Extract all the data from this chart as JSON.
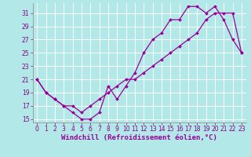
{
  "xlabel": "Windchill (Refroidissement éolien,°C)",
  "bg_color": "#b2e8e8",
  "line_color": "#990099",
  "xlim": [
    -0.5,
    23.5
  ],
  "ylim": [
    14.5,
    32.5
  ],
  "xticks": [
    0,
    1,
    2,
    3,
    4,
    5,
    6,
    7,
    8,
    9,
    10,
    11,
    12,
    13,
    14,
    15,
    16,
    17,
    18,
    19,
    20,
    21,
    22,
    23
  ],
  "yticks": [
    15,
    17,
    19,
    21,
    23,
    25,
    27,
    29,
    31
  ],
  "line1_x": [
    0,
    1,
    2,
    3,
    4,
    5,
    6,
    7,
    8,
    9,
    10,
    11,
    12,
    13,
    14,
    15,
    16,
    17,
    18,
    19,
    20,
    21,
    22,
    23
  ],
  "line1_y": [
    21,
    19,
    18,
    17,
    16,
    15,
    15,
    16,
    20,
    18,
    20,
    22,
    25,
    27,
    28,
    30,
    30,
    32,
    32,
    31,
    32,
    30,
    27,
    25
  ],
  "line2_x": [
    0,
    1,
    2,
    3,
    4,
    5,
    6,
    7,
    8,
    9,
    10,
    11,
    12,
    13,
    14,
    15,
    16,
    17,
    18,
    19,
    20,
    21,
    22,
    23
  ],
  "line2_y": [
    21,
    19,
    18,
    17,
    17,
    16,
    17,
    18,
    19,
    20,
    21,
    21,
    22,
    23,
    24,
    25,
    26,
    27,
    28,
    30,
    31,
    31,
    31,
    25
  ],
  "grid_color": "#ffffff",
  "tick_fontsize": 5.5,
  "xlabel_fontsize": 6.5
}
